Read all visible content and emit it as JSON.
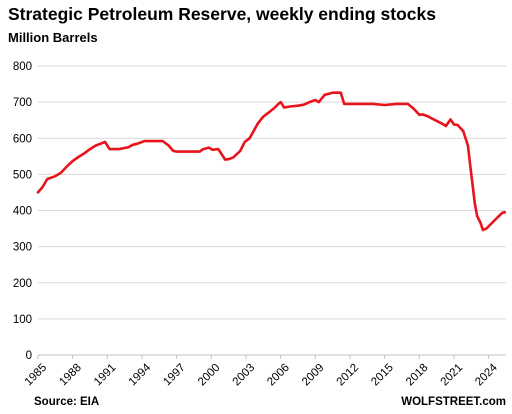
{
  "chart_data": {
    "type": "line",
    "title": "Strategic Petroleum Reserve, weekly ending stocks",
    "subtitle": "Million Barrels",
    "source": "Source: EIA",
    "brand": "WOLFSTREET.com",
    "xlim": [
      1985,
      2025.5
    ],
    "ylim": [
      0,
      800
    ],
    "yticks": [
      0,
      100,
      200,
      300,
      400,
      500,
      600,
      700,
      800
    ],
    "xticks": [
      1985,
      1988,
      1991,
      1994,
      1997,
      2000,
      2003,
      2006,
      2009,
      2012,
      2015,
      2018,
      2021,
      2024
    ],
    "grid": true,
    "line_color": "#e8141b",
    "series": [
      {
        "x": [
          1985.0,
          1985.4,
          1985.8,
          1986.5,
          1987.0,
          1987.5,
          1988.0,
          1988.5,
          1989.0,
          1989.5,
          1990.0,
          1990.5,
          1990.8,
          1991.2,
          1992.0,
          1992.8,
          1993.2,
          1993.6,
          1994.2,
          1995.0,
          1995.8,
          1996.3,
          1996.7,
          1997.0,
          1998.0,
          1999.0,
          1999.3,
          1999.8,
          2000.1,
          2000.6,
          2001.2,
          2001.5,
          2001.9,
          2002.5,
          2002.9,
          2003.3,
          2003.7,
          2004.0,
          2004.5,
          2005.0,
          2005.5,
          2005.8,
          2006.0,
          2006.3,
          2006.8,
          2007.5,
          2008.0,
          2008.5,
          2009.0,
          2009.3,
          2009.8,
          2010.5,
          2011.2,
          2011.5,
          2012.0,
          2013.0,
          2014.0,
          2015.0,
          2016.0,
          2017.0,
          2017.5,
          2018.0,
          2018.3,
          2018.8,
          2019.0,
          2019.5,
          2020.0,
          2020.3,
          2020.7,
          2021.0,
          2021.3,
          2021.8,
          2022.2,
          2022.5,
          2022.8,
          2023.0,
          2023.3,
          2023.5,
          2023.8,
          2024.2,
          2024.8,
          2025.2,
          2025.4
        ],
        "y": [
          450,
          465,
          487,
          495,
          505,
          522,
          537,
          548,
          558,
          570,
          580,
          586,
          590,
          570,
          570,
          575,
          582,
          585,
          592,
          592,
          592,
          580,
          565,
          563,
          563,
          563,
          570,
          574,
          568,
          570,
          541,
          542,
          547,
          565,
          590,
          600,
          622,
          640,
          660,
          672,
          685,
          695,
          700,
          685,
          688,
          690,
          693,
          700,
          706,
          700,
          720,
          726,
          726,
          695,
          695,
          695,
          695,
          692,
          695,
          695,
          682,
          665,
          666,
          660,
          656,
          648,
          640,
          634,
          652,
          638,
          637,
          620,
          580,
          500,
          420,
          385,
          365,
          346,
          350,
          363,
          382,
          394,
          395
        ]
      }
    ]
  }
}
